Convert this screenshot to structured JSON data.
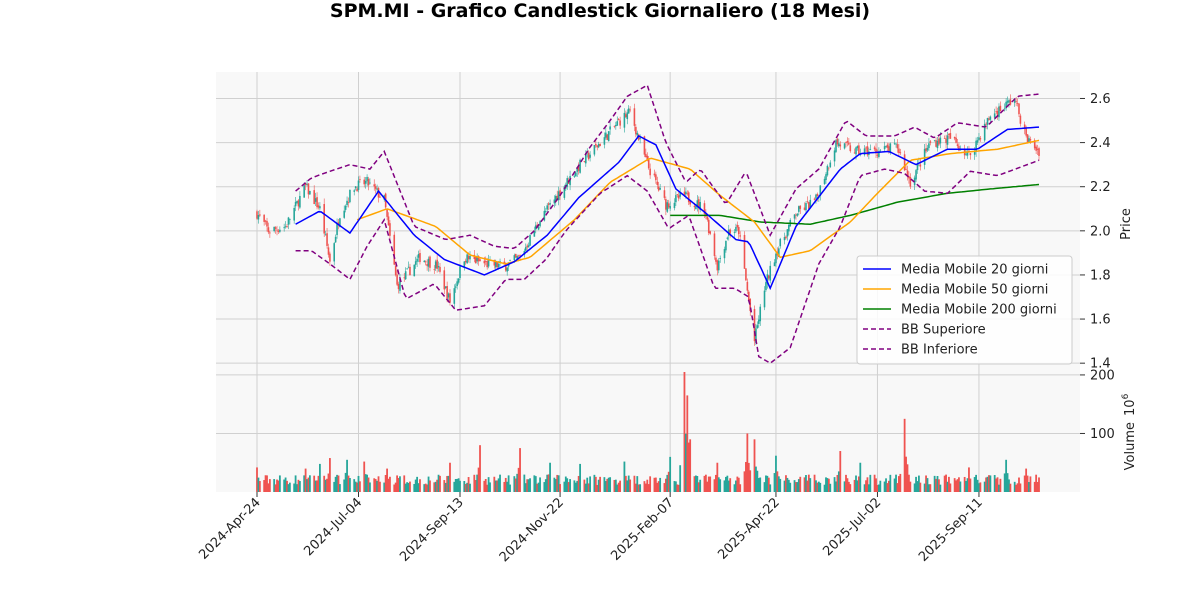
{
  "chart_data": {
    "type": "candlestick",
    "title": "SPM.MI - Grafico Candlestick Giornaliero (18 Mesi)",
    "price_axis": {
      "label": "Price",
      "range": [
        1.36,
        2.72
      ],
      "ticks": [
        1.4,
        1.6,
        1.8,
        2.0,
        2.2,
        2.4,
        2.6
      ]
    },
    "volume_axis": {
      "label": "Volume",
      "exponent_label": "10",
      "exponent": "6",
      "range": [
        0,
        205
      ],
      "ticks": [
        100,
        200
      ]
    },
    "x_axis": {
      "range": [
        "2024-04-24",
        "2025-10-23"
      ],
      "tick_labels": [
        "2024-Apr-24",
        "2024-Jul-04",
        "2024-Sep-13",
        "2024-Nov-22",
        "2025-Feb-07",
        "2025-Apr-22",
        "2025-Jul-02",
        "2025-Sep-11"
      ],
      "tick_dates": [
        "2024-04-24",
        "2024-07-04",
        "2024-09-13",
        "2024-11-22",
        "2025-02-07",
        "2025-04-22",
        "2025-07-02",
        "2025-09-11"
      ]
    },
    "colors": {
      "up": "#26a69a",
      "down": "#ef5350",
      "ma20": "#0000ff",
      "ma50": "#ffa500",
      "ma200": "#008000",
      "bb": "#800080"
    },
    "legend": {
      "placement": "right",
      "entries": [
        {
          "label": "Media Mobile 20 giorni",
          "color": "#0000ff",
          "style": "solid"
        },
        {
          "label": "Media Mobile 50 giorni",
          "color": "#ffa500",
          "style": "solid"
        },
        {
          "label": "Media Mobile 200 giorni",
          "color": "#008000",
          "style": "solid"
        },
        {
          "label": "BB Superiore",
          "color": "#800080",
          "style": "dashed"
        },
        {
          "label": "BB Inferiore",
          "color": "#800080",
          "style": "dashed"
        }
      ]
    },
    "close_keypoints": [
      [
        "2024-04-24",
        2.08
      ],
      [
        "2024-05-02",
        2.0
      ],
      [
        "2024-05-14",
        2.02
      ],
      [
        "2024-05-28",
        2.2
      ],
      [
        "2024-06-07",
        2.1
      ],
      [
        "2024-06-14",
        1.86
      ],
      [
        "2024-06-21",
        2.08
      ],
      [
        "2024-07-01",
        2.2
      ],
      [
        "2024-07-10",
        2.22
      ],
      [
        "2024-07-22",
        2.14
      ],
      [
        "2024-07-31",
        1.75
      ],
      [
        "2024-08-16",
        1.88
      ],
      [
        "2024-08-28",
        1.84
      ],
      [
        "2024-09-06",
        1.68
      ],
      [
        "2024-09-16",
        1.88
      ],
      [
        "2024-10-01",
        1.85
      ],
      [
        "2024-10-14",
        1.84
      ],
      [
        "2024-10-25",
        1.88
      ],
      [
        "2024-11-08",
        2.05
      ],
      [
        "2024-11-22",
        2.18
      ],
      [
        "2024-12-06",
        2.3
      ],
      [
        "2024-12-20",
        2.4
      ],
      [
        "2025-01-03",
        2.5
      ],
      [
        "2025-01-10",
        2.54
      ],
      [
        "2025-01-22",
        2.3
      ],
      [
        "2025-02-04",
        2.12
      ],
      [
        "2025-02-17",
        2.16
      ],
      [
        "2025-03-03",
        2.1
      ],
      [
        "2025-03-12",
        1.84
      ],
      [
        "2025-03-20",
        2.0
      ],
      [
        "2025-03-27",
        2.0
      ],
      [
        "2025-04-07",
        1.5
      ],
      [
        "2025-04-14",
        1.74
      ],
      [
        "2025-04-22",
        1.9
      ],
      [
        "2025-05-06",
        2.08
      ],
      [
        "2025-05-20",
        2.14
      ],
      [
        "2025-06-03",
        2.4
      ],
      [
        "2025-06-17",
        2.36
      ],
      [
        "2025-07-02",
        2.36
      ],
      [
        "2025-07-16",
        2.38
      ],
      [
        "2025-07-25",
        2.22
      ],
      [
        "2025-08-08",
        2.4
      ],
      [
        "2025-08-22",
        2.42
      ],
      [
        "2025-09-04",
        2.34
      ],
      [
        "2025-09-19",
        2.52
      ],
      [
        "2025-10-06",
        2.6
      ],
      [
        "2025-10-14",
        2.42
      ],
      [
        "2025-10-23",
        2.36
      ]
    ],
    "ma20_keypoints": [
      [
        "2024-05-21",
        2.03
      ],
      [
        "2024-06-07",
        2.09
      ],
      [
        "2024-06-28",
        1.99
      ],
      [
        "2024-07-18",
        2.18
      ],
      [
        "2024-08-12",
        1.98
      ],
      [
        "2024-09-02",
        1.87
      ],
      [
        "2024-09-30",
        1.8
      ],
      [
        "2024-10-21",
        1.86
      ],
      [
        "2024-11-13",
        1.98
      ],
      [
        "2024-12-05",
        2.15
      ],
      [
        "2025-01-02",
        2.31
      ],
      [
        "2025-01-16",
        2.43
      ],
      [
        "2025-01-28",
        2.39
      ],
      [
        "2025-02-11",
        2.19
      ],
      [
        "2025-03-04",
        2.08
      ],
      [
        "2025-03-25",
        1.96
      ],
      [
        "2025-04-03",
        1.95
      ],
      [
        "2025-04-18",
        1.74
      ],
      [
        "2025-05-06",
        2.02
      ],
      [
        "2025-06-06",
        2.28
      ],
      [
        "2025-06-20",
        2.35
      ],
      [
        "2025-07-10",
        2.36
      ],
      [
        "2025-07-29",
        2.3
      ],
      [
        "2025-08-20",
        2.37
      ],
      [
        "2025-09-10",
        2.37
      ],
      [
        "2025-10-01",
        2.46
      ],
      [
        "2025-10-23",
        2.47
      ]
    ],
    "ma50_keypoints": [
      [
        "2024-07-03",
        2.05
      ],
      [
        "2024-07-24",
        2.1
      ],
      [
        "2024-08-27",
        2.02
      ],
      [
        "2024-09-20",
        1.89
      ],
      [
        "2024-10-15",
        1.85
      ],
      [
        "2024-11-01",
        1.88
      ],
      [
        "2024-12-02",
        2.05
      ],
      [
        "2024-12-27",
        2.22
      ],
      [
        "2025-01-24",
        2.33
      ],
      [
        "2025-02-21",
        2.28
      ],
      [
        "2025-03-14",
        2.16
      ],
      [
        "2025-04-07",
        2.04
      ],
      [
        "2025-04-25",
        1.88
      ],
      [
        "2025-05-16",
        1.91
      ],
      [
        "2025-06-13",
        2.04
      ],
      [
        "2025-07-02",
        2.17
      ],
      [
        "2025-07-25",
        2.32
      ],
      [
        "2025-08-22",
        2.35
      ],
      [
        "2025-09-24",
        2.37
      ],
      [
        "2025-10-23",
        2.41
      ]
    ],
    "ma200_keypoints": [
      [
        "2025-02-07",
        2.07
      ],
      [
        "2025-03-14",
        2.07
      ],
      [
        "2025-04-11",
        2.04
      ],
      [
        "2025-05-16",
        2.03
      ],
      [
        "2025-06-13",
        2.07
      ],
      [
        "2025-07-16",
        2.13
      ],
      [
        "2025-08-20",
        2.17
      ],
      [
        "2025-09-19",
        2.19
      ],
      [
        "2025-10-23",
        2.21
      ]
    ],
    "bb_upper_keypoints": [
      [
        "2024-05-21",
        2.18
      ],
      [
        "2024-06-01",
        2.24
      ],
      [
        "2024-06-14",
        2.27
      ],
      [
        "2024-06-28",
        2.3
      ],
      [
        "2024-07-12",
        2.28
      ],
      [
        "2024-07-22",
        2.36
      ],
      [
        "2024-08-12",
        2.02
      ],
      [
        "2024-09-03",
        1.96
      ],
      [
        "2024-09-20",
        1.98
      ],
      [
        "2024-10-07",
        1.93
      ],
      [
        "2024-10-21",
        1.92
      ],
      [
        "2024-11-04",
        2.0
      ],
      [
        "2024-11-22",
        2.16
      ],
      [
        "2024-12-13",
        2.38
      ],
      [
        "2024-12-27",
        2.5
      ],
      [
        "2025-01-08",
        2.61
      ],
      [
        "2025-01-22",
        2.66
      ],
      [
        "2025-02-04",
        2.4
      ],
      [
        "2025-02-18",
        2.22
      ],
      [
        "2025-02-28",
        2.28
      ],
      [
        "2025-03-18",
        2.12
      ],
      [
        "2025-04-01",
        2.27
      ],
      [
        "2025-04-18",
        1.98
      ],
      [
        "2025-05-06",
        2.19
      ],
      [
        "2025-05-22",
        2.28
      ],
      [
        "2025-06-10",
        2.5
      ],
      [
        "2025-06-24",
        2.43
      ],
      [
        "2025-07-14",
        2.43
      ],
      [
        "2025-07-28",
        2.47
      ],
      [
        "2025-08-11",
        2.42
      ],
      [
        "2025-08-27",
        2.49
      ],
      [
        "2025-09-16",
        2.47
      ],
      [
        "2025-10-08",
        2.61
      ],
      [
        "2025-10-23",
        2.62
      ]
    ],
    "bb_lower_keypoints": [
      [
        "2024-05-21",
        1.91
      ],
      [
        "2024-06-01",
        1.91
      ],
      [
        "2024-06-14",
        1.85
      ],
      [
        "2024-06-28",
        1.78
      ],
      [
        "2024-07-10",
        1.93
      ],
      [
        "2024-07-22",
        2.05
      ],
      [
        "2024-08-06",
        1.69
      ],
      [
        "2024-08-26",
        1.76
      ],
      [
        "2024-09-10",
        1.64
      ],
      [
        "2024-09-30",
        1.66
      ],
      [
        "2024-10-15",
        1.78
      ],
      [
        "2024-10-28",
        1.78
      ],
      [
        "2024-11-12",
        1.87
      ],
      [
        "2024-11-26",
        2.0
      ],
      [
        "2024-12-20",
        2.17
      ],
      [
        "2025-01-08",
        2.25
      ],
      [
        "2025-01-22",
        2.18
      ],
      [
        "2025-02-06",
        2.01
      ],
      [
        "2025-02-20",
        2.07
      ],
      [
        "2025-03-10",
        1.74
      ],
      [
        "2025-03-24",
        1.74
      ],
      [
        "2025-04-03",
        1.7
      ],
      [
        "2025-04-10",
        1.43
      ],
      [
        "2025-04-18",
        1.4
      ],
      [
        "2025-05-02",
        1.47
      ],
      [
        "2025-05-22",
        1.85
      ],
      [
        "2025-06-06",
        2.02
      ],
      [
        "2025-06-20",
        2.25
      ],
      [
        "2025-07-07",
        2.28
      ],
      [
        "2025-07-21",
        2.26
      ],
      [
        "2025-08-04",
        2.18
      ],
      [
        "2025-08-20",
        2.17
      ],
      [
        "2025-09-05",
        2.27
      ],
      [
        "2025-09-24",
        2.25
      ],
      [
        "2025-10-23",
        2.32
      ]
    ],
    "volume_base_millions": 20,
    "volume_spikes": [
      [
        "2024-04-24",
        42
      ],
      [
        "2024-05-28",
        40
      ],
      [
        "2024-06-07",
        48
      ],
      [
        "2024-06-14",
        58
      ],
      [
        "2024-06-26",
        55
      ],
      [
        "2024-07-08",
        52
      ],
      [
        "2024-07-24",
        40
      ],
      [
        "2024-09-06",
        50
      ],
      [
        "2024-09-27",
        80
      ],
      [
        "2024-10-25",
        75
      ],
      [
        "2024-11-15",
        50
      ],
      [
        "2024-12-06",
        48
      ],
      [
        "2025-01-06",
        52
      ],
      [
        "2025-02-07",
        60
      ],
      [
        "2025-02-17",
        205
      ],
      [
        "2025-02-19",
        165
      ],
      [
        "2025-02-21",
        90
      ],
      [
        "2025-03-12",
        50
      ],
      [
        "2025-04-02",
        100
      ],
      [
        "2025-04-07",
        90
      ],
      [
        "2025-04-22",
        62
      ],
      [
        "2025-06-06",
        70
      ],
      [
        "2025-06-20",
        50
      ],
      [
        "2025-07-21",
        125
      ],
      [
        "2025-09-04",
        42
      ],
      [
        "2025-09-30",
        55
      ],
      [
        "2025-10-14",
        40
      ]
    ]
  }
}
